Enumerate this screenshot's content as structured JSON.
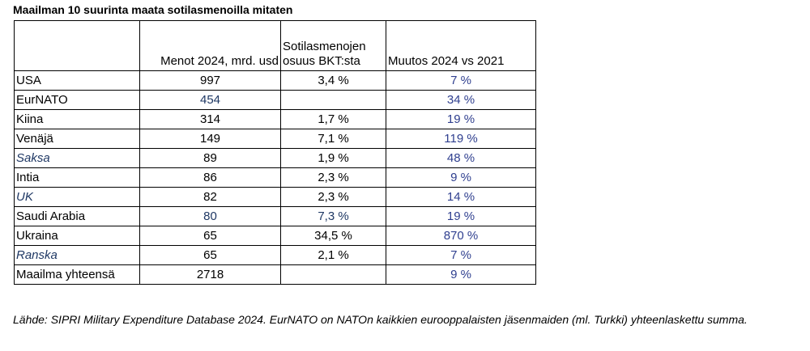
{
  "title": "Maailman 10 suurinta maata sotilasmenoilla mitaten",
  "headers": [
    "",
    "Menot 2024, mrd. usd",
    "Sotilasmenojen osuus BKT:sta",
    "Muutos 2024 vs 2021"
  ],
  "rows": [
    {
      "name": "USA",
      "spend": "997",
      "gdp": "3,4 %",
      "change": "7 %"
    },
    {
      "name": "EurNATO",
      "spend": "454",
      "gdp": "",
      "change": "34 %"
    },
    {
      "name": "Kiina",
      "spend": "314",
      "gdp": "1,7 %",
      "change": "19 %"
    },
    {
      "name": "Venäjä",
      "spend": "149",
      "gdp": "7,1 %",
      "change": "119 %"
    },
    {
      "name": "Saksa",
      "spend": "89",
      "gdp": "1,9 %",
      "change": "48 %"
    },
    {
      "name": "Intia",
      "spend": "86",
      "gdp": "2,3 %",
      "change": "9 %"
    },
    {
      "name": "UK",
      "spend": "82",
      "gdp": "2,3 %",
      "change": "14 %"
    },
    {
      "name": "Saudi Arabia",
      "spend": "80",
      "gdp": "7,3 %",
      "change": "19 %"
    },
    {
      "name": "Ukraina",
      "spend": "65",
      "gdp": "34,5 %",
      "change": "870 %"
    },
    {
      "name": "Ranska",
      "spend": "65",
      "gdp": "2,1 %",
      "change": "7 %"
    },
    {
      "name": "Maailma yhteensä",
      "spend": "2718",
      "gdp": "",
      "change": "9 %"
    }
  ],
  "footer": "Lähde: SIPRI Military Expenditure Database 2024. EurNATO on NATOn kaikkien eurooppalaisten jäsenmaiden (ml. Turkki) yhteenlaskettu summa."
}
